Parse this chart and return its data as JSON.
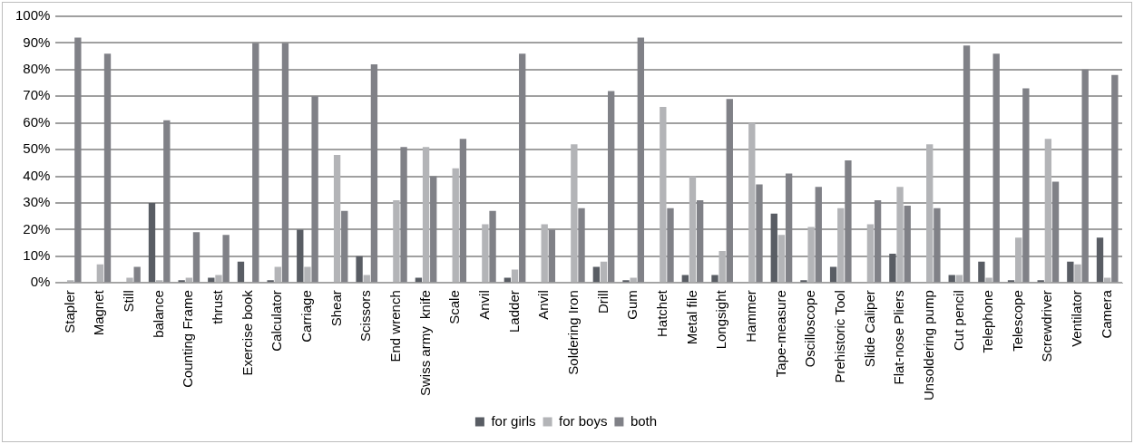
{
  "chart_data": {
    "type": "bar",
    "categories": [
      "Stapler",
      "Magnet",
      "Still",
      "balance",
      "Counting Frame",
      "thrust",
      "Exercise book",
      "Calculator",
      "Carriage",
      "Shear",
      "Scissors",
      "End wrench",
      "Swiss army  knife",
      "Scale",
      "Anvil",
      "Ladder",
      "Anvil",
      "Soldering Iron",
      "Drill",
      "Gum",
      "Hatchet",
      "Metal file",
      "Longsight",
      "Hammer",
      "Tape-measure",
      "Oscilloscope",
      "Prehistoric Tool",
      "Slide Caliper",
      "Flat-nose Pliers",
      "Unsoldering pump",
      "Cut pencil",
      "Telephone",
      "Telescope",
      "Screwdriver",
      "Ventilator",
      "Camera"
    ],
    "series": [
      {
        "name": "for girls",
        "color": "#595d64",
        "values": [
          0,
          0,
          0,
          30,
          1,
          2,
          8,
          1,
          20,
          0,
          10,
          0,
          2,
          0,
          0,
          2,
          0,
          0,
          6,
          1,
          0,
          3,
          3,
          0,
          26,
          1,
          6,
          0,
          11,
          0,
          3,
          8,
          1,
          1,
          8,
          17
        ]
      },
      {
        "name": "for boys",
        "color": "#b3b4b7",
        "values": [
          1,
          7,
          2,
          1,
          2,
          3,
          0,
          6,
          6,
          48,
          3,
          31,
          51,
          43,
          22,
          5,
          22,
          52,
          8,
          2,
          66,
          40,
          12,
          60,
          18,
          21,
          28,
          22,
          36,
          52,
          3,
          2,
          17,
          54,
          7,
          2
        ]
      },
      {
        "name": "both",
        "color": "#808187",
        "values": [
          92,
          86,
          6,
          61,
          19,
          18,
          90,
          90,
          70,
          27,
          82,
          51,
          40,
          54,
          27,
          86,
          20,
          28,
          72,
          92,
          28,
          31,
          69,
          37,
          41,
          36,
          46,
          31,
          29,
          28,
          89,
          86,
          73,
          38,
          80,
          78
        ]
      }
    ],
    "ylim": [
      0,
      100
    ],
    "yticks": [
      {
        "value": 0,
        "label": "0%"
      },
      {
        "value": 10,
        "label": "10%"
      },
      {
        "value": 20,
        "label": "20%"
      },
      {
        "value": 30,
        "label": "30%"
      },
      {
        "value": 40,
        "label": "40%"
      },
      {
        "value": 50,
        "label": "50%"
      },
      {
        "value": 60,
        "label": "60%"
      },
      {
        "value": 70,
        "label": "70%"
      },
      {
        "value": 80,
        "label": "80%"
      },
      {
        "value": 90,
        "label": "90%"
      },
      {
        "value": 100,
        "label": "100%"
      }
    ],
    "grid": "y",
    "legend": "bottom"
  }
}
